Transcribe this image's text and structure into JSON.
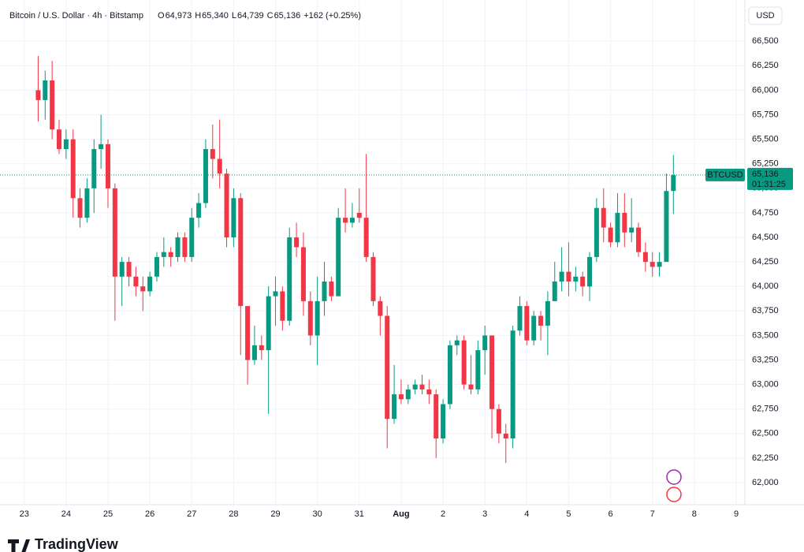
{
  "chart_data": {
    "type": "candlestick",
    "title": "Bitcoin / U.S. Dollar · 4h · Bitstamp",
    "ohlc_legend": [
      {
        "label": "O",
        "value": "64,973"
      },
      {
        "label": "H",
        "value": "65,340"
      },
      {
        "label": "L",
        "value": "64,739"
      },
      {
        "label": "C",
        "value": "65,136"
      }
    ],
    "change": "+162 (+0.25%)",
    "currency": "USD",
    "symbol": "BTCUSD",
    "last_price_label": "65,136",
    "countdown": "01:31:25",
    "brand": "TradingView",
    "up_color": "#089981",
    "down_color": "#f23645",
    "grid": true,
    "categories": [
      null,
      null,
      "23",
      null,
      null,
      null,
      null,
      null,
      "24",
      null,
      null,
      null,
      null,
      null,
      "25",
      null,
      null,
      null,
      null,
      null,
      "26",
      null,
      null,
      null,
      null,
      null,
      "27",
      null,
      null,
      null,
      null,
      null,
      "28",
      null,
      null,
      null,
      null,
      null,
      "29",
      null,
      null,
      null,
      null,
      null,
      "30",
      null,
      null,
      null,
      null,
      null,
      "31",
      null,
      null,
      null,
      null,
      null,
      "Aug",
      null,
      null,
      null,
      null,
      null,
      "2",
      null,
      null,
      null,
      null,
      null,
      "3",
      null,
      null,
      null,
      null,
      null,
      "4",
      null,
      null,
      null,
      null,
      null,
      "5",
      null,
      null,
      null,
      null,
      null,
      "6",
      null,
      null,
      null,
      null,
      null,
      "7",
      null,
      null,
      null,
      null,
      null,
      "8",
      null,
      null,
      null,
      null,
      null,
      "9",
      null
    ],
    "open": [
      null,
      null,
      null,
      null,
      66000,
      65900,
      66100,
      65600,
      65400,
      65500,
      64900,
      64700,
      65000,
      65400,
      65450,
      65000,
      64100,
      64250,
      64100,
      64000,
      63950,
      64100,
      64300,
      64350,
      64300,
      64500,
      64300,
      64700,
      64850,
      65400,
      65300,
      65150,
      64500,
      64900,
      63800,
      63250,
      63400,
      63350,
      63900,
      63950,
      63650,
      64500,
      64400,
      63850,
      63500,
      63850,
      64050,
      63900,
      64700,
      64650,
      64750,
      64700,
      64300,
      63850,
      63700,
      62650,
      62900,
      62850,
      62950,
      63000,
      62950,
      62900,
      62450,
      62800,
      63400,
      63450,
      63000,
      62950,
      63350,
      63500,
      62750,
      62500,
      62450,
      63550,
      63800,
      63450,
      63700,
      63600,
      63850,
      64050,
      64150,
      64050,
      64100,
      64000,
      64300,
      64800,
      64600,
      64450,
      64750,
      64550,
      64600,
      64350,
      64250,
      64200,
      64250,
      64973,
      null,
      null,
      null,
      null,
      null,
      null,
      null,
      null,
      null,
      null
    ],
    "high": [
      null,
      null,
      null,
      null,
      66350,
      66200,
      66300,
      65700,
      65600,
      65600,
      65000,
      65100,
      65500,
      65750,
      65500,
      65050,
      64300,
      64300,
      64200,
      64100,
      64150,
      64350,
      64500,
      64400,
      64550,
      64550,
      64800,
      64950,
      65500,
      65650,
      65700,
      65200,
      65000,
      64950,
      63800,
      63600,
      63500,
      64000,
      64100,
      64000,
      64600,
      64650,
      64550,
      63950,
      64100,
      64250,
      64100,
      64800,
      65000,
      64850,
      65000,
      65350,
      64350,
      63900,
      63800,
      63200,
      63050,
      63000,
      63050,
      63100,
      63050,
      62950,
      62850,
      63450,
      63500,
      63500,
      63300,
      63450,
      63600,
      63500,
      62800,
      62600,
      63600,
      63900,
      63850,
      63750,
      63750,
      63950,
      64250,
      64400,
      64450,
      64200,
      64150,
      64350,
      64900,
      65000,
      64650,
      64950,
      64950,
      64900,
      64650,
      64450,
      64350,
      64350,
      65150,
      65340,
      null,
      null,
      null,
      null,
      null,
      null,
      null,
      null,
      null,
      null
    ],
    "low": [
      null,
      null,
      null,
      null,
      65680,
      65700,
      65500,
      65350,
      65300,
      64700,
      64600,
      64650,
      64750,
      65200,
      64800,
      63650,
      63800,
      64000,
      63900,
      63750,
      63900,
      64050,
      64200,
      64200,
      64250,
      64250,
      64250,
      64600,
      64800,
      65100,
      65000,
      64400,
      64400,
      63300,
      63000,
      63200,
      63250,
      62700,
      63600,
      63550,
      63600,
      64300,
      63700,
      63400,
      63200,
      63700,
      63850,
      63900,
      64550,
      64600,
      64650,
      64250,
      63800,
      63500,
      62350,
      62600,
      62800,
      62800,
      62900,
      62900,
      62800,
      62250,
      62400,
      62750,
      63300,
      62950,
      62900,
      62900,
      63100,
      62450,
      62400,
      62200,
      62350,
      63500,
      63400,
      63400,
      63450,
      63300,
      63850,
      63950,
      63900,
      63950,
      63900,
      63850,
      64250,
      64450,
      64400,
      64400,
      64400,
      64450,
      64300,
      64150,
      64100,
      64100,
      64250,
      64739,
      null,
      null,
      null,
      null,
      null,
      null,
      null,
      null,
      null,
      null
    ],
    "close": [
      null,
      null,
      null,
      null,
      65900,
      66100,
      65600,
      65400,
      65500,
      64900,
      64700,
      65000,
      65400,
      65450,
      65000,
      64100,
      64250,
      64100,
      64000,
      63950,
      64100,
      64300,
      64350,
      64300,
      64500,
      64300,
      64700,
      64850,
      65400,
      65300,
      65150,
      64500,
      64900,
      63800,
      63250,
      63400,
      63350,
      63900,
      63950,
      63650,
      64500,
      64400,
      63850,
      63500,
      63850,
      64050,
      63900,
      64700,
      64650,
      64700,
      64700,
      64300,
      63850,
      63700,
      62650,
      62900,
      62850,
      62950,
      63000,
      62950,
      62900,
      62450,
      62800,
      63400,
      63450,
      63000,
      62950,
      63350,
      63500,
      62750,
      62500,
      62450,
      63550,
      63800,
      63450,
      63700,
      63600,
      63850,
      64050,
      64150,
      64050,
      64100,
      64000,
      64300,
      64800,
      64600,
      64450,
      64750,
      64550,
      64600,
      64350,
      64250,
      64200,
      64250,
      64973,
      65136,
      null,
      null,
      null,
      null,
      null,
      null,
      null,
      null,
      null,
      null
    ],
    "ylim": [
      61775,
      66920
    ],
    "yticks": [
      {
        "value": 62000,
        "label": "62,000"
      },
      {
        "value": 62250,
        "label": "62,250"
      },
      {
        "value": 62500,
        "label": "62,500"
      },
      {
        "value": 62750,
        "label": "62,750"
      },
      {
        "value": 63000,
        "label": "63,000"
      },
      {
        "value": 63250,
        "label": "63,250"
      },
      {
        "value": 63500,
        "label": "63,500"
      },
      {
        "value": 63750,
        "label": "63,750"
      },
      {
        "value": 64000,
        "label": "64,000"
      },
      {
        "value": 64250,
        "label": "64,250"
      },
      {
        "value": 64500,
        "label": "64,500"
      },
      {
        "value": 64750,
        "label": "64,750"
      },
      {
        "value": 65000,
        "label": "65,000"
      },
      {
        "value": 65250,
        "label": "65,250"
      },
      {
        "value": 65500,
        "label": "65,500"
      },
      {
        "value": 65750,
        "label": "65,750"
      },
      {
        "value": 66000,
        "label": "66,000"
      },
      {
        "value": 66250,
        "label": "66,250"
      },
      {
        "value": 66500,
        "label": "66,500"
      }
    ]
  }
}
